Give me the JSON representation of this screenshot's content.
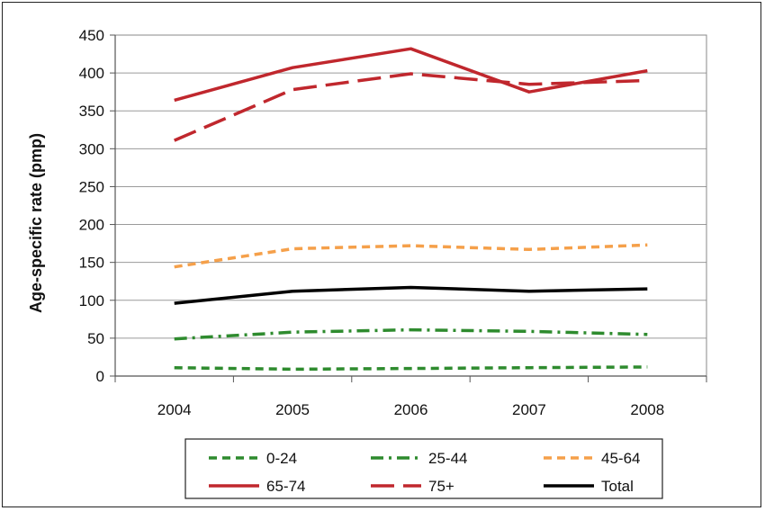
{
  "chart_data": {
    "type": "line",
    "title": "",
    "xlabel": "",
    "ylabel": "Age-specific rate (pmp)",
    "x": [
      "2004",
      "2005",
      "2006",
      "2007",
      "2008"
    ],
    "ylim": [
      0,
      450
    ],
    "yticks": [
      0,
      50,
      100,
      150,
      200,
      250,
      300,
      350,
      400,
      450
    ],
    "grid": "horizontal",
    "legend_position": "bottom",
    "series": [
      {
        "name": "0-24",
        "values": [
          11,
          9,
          10,
          11,
          12
        ],
        "color": "#2e8b2e",
        "style": "dashed"
      },
      {
        "name": "25-44",
        "values": [
          49,
          58,
          61,
          59,
          55
        ],
        "color": "#2e8b2e",
        "style": "dash-dot"
      },
      {
        "name": "45-64",
        "values": [
          144,
          168,
          172,
          167,
          173
        ],
        "color": "#f5a04a",
        "style": "dashed"
      },
      {
        "name": "65-74",
        "values": [
          364,
          407,
          432,
          375,
          403
        ],
        "color": "#c0272d",
        "style": "solid"
      },
      {
        "name": "75+",
        "values": [
          311,
          378,
          399,
          385,
          390
        ],
        "color": "#c0272d",
        "style": "long-dash"
      },
      {
        "name": "Total",
        "values": [
          96,
          112,
          117,
          112,
          115
        ],
        "color": "#000000",
        "style": "solid"
      }
    ]
  }
}
